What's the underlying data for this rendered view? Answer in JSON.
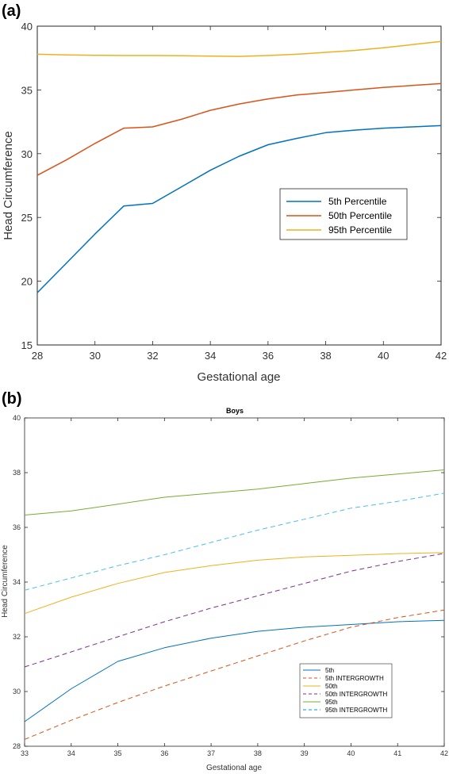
{
  "chart_data": [
    {
      "panel": "(a)",
      "type": "line",
      "title": "",
      "xlabel": "Gestational age",
      "ylabel": "Head Circumference",
      "xlim": [
        28,
        42
      ],
      "ylim": [
        15,
        40
      ],
      "xticks": [
        28,
        30,
        32,
        34,
        36,
        38,
        40,
        42
      ],
      "yticks": [
        15,
        20,
        25,
        30,
        35,
        40
      ],
      "legend_position": "center-right",
      "x": [
        28,
        29,
        30,
        31,
        32,
        33,
        34,
        35,
        36,
        37,
        38,
        39,
        40,
        41,
        42
      ],
      "series": [
        {
          "name": "5th Percentile",
          "color": "#0072BD",
          "style": "solid",
          "values": [
            19.1,
            21.4,
            23.7,
            25.9,
            26.1,
            27.4,
            28.7,
            29.8,
            30.7,
            31.2,
            31.65,
            31.85,
            32.0,
            32.1,
            32.2
          ]
        },
        {
          "name": "50th Percentile",
          "color": "#D95319",
          "style": "solid",
          "values": [
            28.3,
            29.5,
            30.8,
            32.0,
            32.1,
            32.7,
            33.4,
            33.9,
            34.3,
            34.6,
            34.8,
            35.0,
            35.2,
            35.35,
            35.5
          ]
        },
        {
          "name": "95th Percentile",
          "color": "#EDB120",
          "style": "solid",
          "values": [
            37.8,
            37.75,
            37.72,
            37.7,
            37.7,
            37.68,
            37.65,
            37.63,
            37.7,
            37.8,
            37.95,
            38.1,
            38.3,
            38.55,
            38.8
          ]
        }
      ]
    },
    {
      "panel": "(b)",
      "type": "line",
      "title": "Boys",
      "xlabel": "Gestational age",
      "ylabel": "Head Circumference",
      "xlim": [
        33,
        42
      ],
      "ylim": [
        28,
        40
      ],
      "xticks": [
        33,
        34,
        35,
        36,
        37,
        38,
        39,
        40,
        41,
        42
      ],
      "yticks": [
        28,
        30,
        32,
        34,
        36,
        38,
        40
      ],
      "legend_position": "bottom-right",
      "x": [
        33,
        34,
        35,
        36,
        37,
        38,
        39,
        40,
        41,
        42
      ],
      "series": [
        {
          "name": "5th",
          "color": "#0072BD",
          "style": "solid",
          "values": [
            28.9,
            30.1,
            31.1,
            31.6,
            31.95,
            32.2,
            32.35,
            32.45,
            32.55,
            32.6
          ]
        },
        {
          "name": "5th INTERGROWTH",
          "color": "#D95319",
          "style": "dashed",
          "values": [
            28.25,
            28.95,
            29.6,
            30.2,
            30.75,
            31.3,
            31.85,
            32.35,
            32.7,
            32.98
          ]
        },
        {
          "name": "50th",
          "color": "#EDB120",
          "style": "solid",
          "values": [
            32.85,
            33.45,
            33.95,
            34.35,
            34.6,
            34.8,
            34.92,
            34.98,
            35.04,
            35.08
          ]
        },
        {
          "name": "50th INTERGROWTH",
          "color": "#7E2F8E",
          "style": "dashed",
          "values": [
            30.9,
            31.45,
            32.0,
            32.55,
            33.05,
            33.5,
            33.95,
            34.4,
            34.75,
            35.05
          ]
        },
        {
          "name": "95th",
          "color": "#77AC30",
          "style": "solid",
          "values": [
            36.45,
            36.6,
            36.85,
            37.1,
            37.25,
            37.4,
            37.6,
            37.8,
            37.95,
            38.1
          ]
        },
        {
          "name": "95th INTERGROWTH",
          "color": "#4DBEEE",
          "style": "dashed",
          "values": [
            33.7,
            34.15,
            34.6,
            35.0,
            35.45,
            35.9,
            36.3,
            36.7,
            36.95,
            37.25
          ]
        }
      ]
    }
  ]
}
